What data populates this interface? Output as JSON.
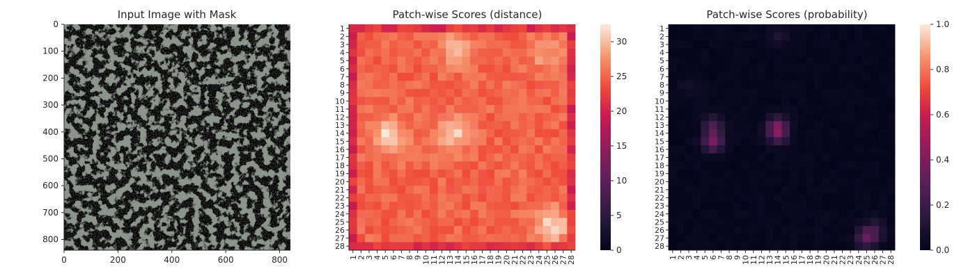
{
  "chart_data": [
    {
      "type": "image",
      "title": "Input Image with Mask",
      "x_ticks": [
        0,
        200,
        400,
        600,
        800
      ],
      "y_ticks": [
        0,
        100,
        200,
        300,
        400,
        500,
        600,
        700,
        800
      ],
      "xlim": [
        0,
        840
      ],
      "ylim": [
        840,
        0
      ],
      "image_description": "mottled texture of dark grey blotches on light grey-green background"
    },
    {
      "type": "heatmap",
      "title": "Patch-wise Scores (distance)",
      "rows": [
        "1",
        "2",
        "3",
        "4",
        "5",
        "6",
        "7",
        "8",
        "9",
        "10",
        "11",
        "12",
        "13",
        "14",
        "15",
        "16",
        "17",
        "18",
        "19",
        "20",
        "21",
        "22",
        "23",
        "24",
        "25",
        "26",
        "27",
        "28"
      ],
      "cols": [
        "1",
        "2",
        "3",
        "4",
        "5",
        "6",
        "7",
        "8",
        "9",
        "10",
        "11",
        "12",
        "13",
        "14",
        "15",
        "16",
        "17",
        "18",
        "19",
        "20",
        "21",
        "22",
        "23",
        "24",
        "25",
        "26",
        "27",
        "28"
      ],
      "colorbar": {
        "ticks": [
          0,
          5,
          10,
          15,
          20,
          25,
          30
        ],
        "vmin": 0,
        "vmax": 32.5
      },
      "base_value": 25,
      "hotspots": [
        {
          "row": 14.5,
          "col": 5.5,
          "value": 31.5
        },
        {
          "row": 14,
          "col": 13.5,
          "value": 30.5
        },
        {
          "row": 25.5,
          "col": 25.5,
          "value": 31.5
        },
        {
          "row": 3.5,
          "col": 14,
          "value": 29
        },
        {
          "row": 4,
          "col": 25,
          "value": 28.5
        }
      ]
    },
    {
      "type": "heatmap",
      "title": "Patch-wise Scores (probability)",
      "rows": [
        "1",
        "2",
        "3",
        "4",
        "5",
        "6",
        "7",
        "8",
        "9",
        "10",
        "11",
        "12",
        "13",
        "14",
        "15",
        "16",
        "17",
        "18",
        "19",
        "20",
        "21",
        "22",
        "23",
        "24",
        "25",
        "26",
        "27",
        "28"
      ],
      "cols": [
        "1",
        "2",
        "3",
        "4",
        "5",
        "6",
        "7",
        "8",
        "9",
        "10",
        "11",
        "12",
        "13",
        "14",
        "15",
        "16",
        "17",
        "18",
        "19",
        "20",
        "21",
        "22",
        "23",
        "24",
        "25",
        "26",
        "27",
        "28"
      ],
      "colorbar": {
        "ticks": [
          0.0,
          0.2,
          0.4,
          0.6,
          0.8,
          1.0
        ],
        "tick_labels": [
          "0.0",
          "0.2",
          "0.4",
          "0.6",
          "0.8",
          "1.0"
        ],
        "vmin": 0,
        "vmax": 1
      },
      "hotspots": [
        {
          "row": 15,
          "col": 6,
          "value": 0.35
        },
        {
          "row": 13,
          "col": 6,
          "value": 0.2
        },
        {
          "row": 14,
          "col": 14,
          "value": 0.3
        },
        {
          "row": 13,
          "col": 14,
          "value": 0.22
        },
        {
          "row": 27,
          "col": 25,
          "value": 0.28
        },
        {
          "row": 26,
          "col": 26,
          "value": 0.15
        },
        {
          "row": 2,
          "col": 14,
          "value": 0.08
        },
        {
          "row": 8,
          "col": 3,
          "value": 0.05
        }
      ]
    }
  ]
}
